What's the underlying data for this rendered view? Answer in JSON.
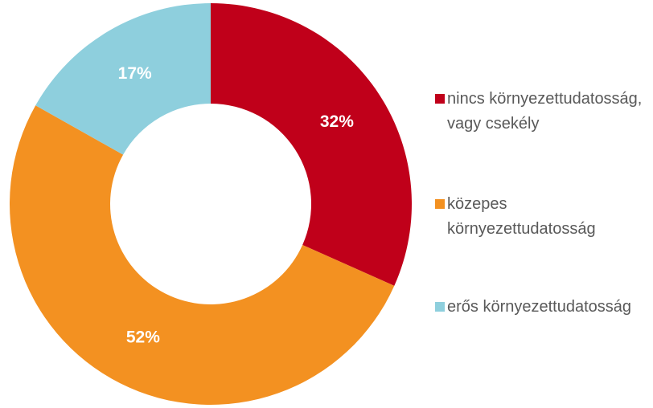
{
  "chart_data": {
    "type": "donut",
    "categories": [
      "nincs környezettudatosság, vagy csekély",
      "közepes környezettudatosság",
      "erős környezettudatosság"
    ],
    "values": [
      32,
      52,
      17
    ],
    "value_labels": [
      "32%",
      "52%",
      "17%"
    ],
    "colors": [
      "#c0001a",
      "#f39121",
      "#8ecfdd"
    ],
    "legend": "right"
  }
}
